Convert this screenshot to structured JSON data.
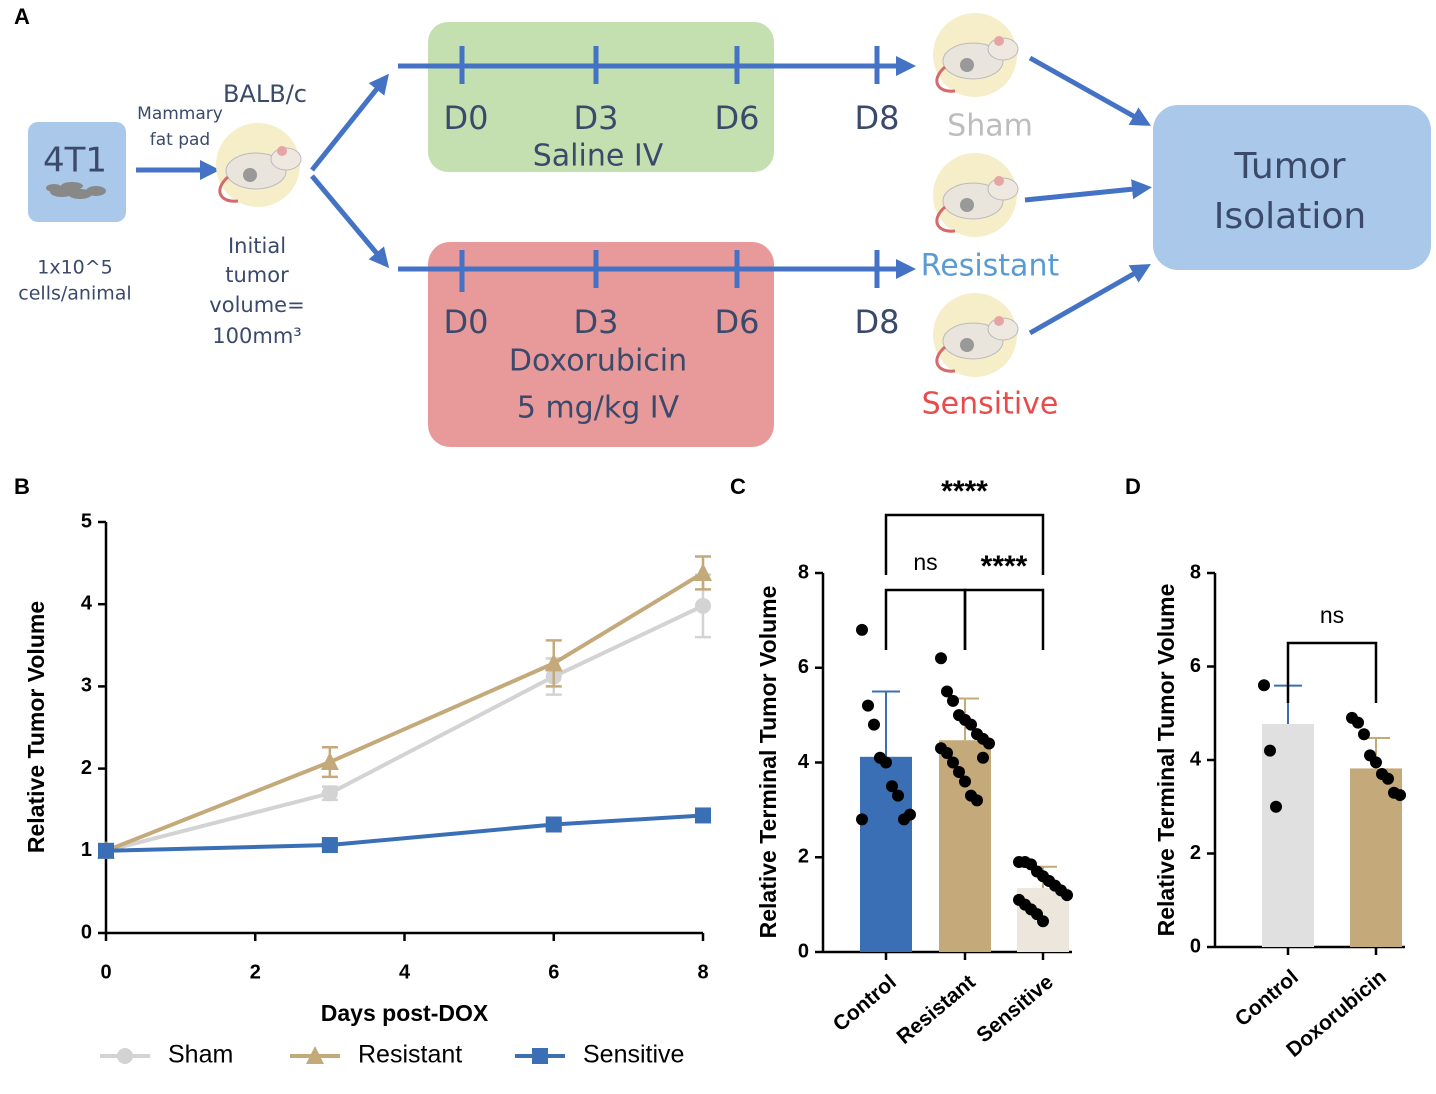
{
  "diagram": {
    "panel": "A",
    "cell_line": "4T1",
    "cell_count": [
      "1x10^5",
      "cells/animal"
    ],
    "route": [
      "Mammary",
      "fat pad"
    ],
    "strain": "BALB/c",
    "initial": [
      "Initial",
      "tumor",
      "volume=",
      "100mm³"
    ],
    "saline_days": [
      "D0",
      "D3",
      "D6",
      "D8"
    ],
    "saline_label": "Saline IV",
    "dox_days": [
      "D0",
      "D3",
      "D6",
      "D8"
    ],
    "dox_label": [
      "Doxorubicin",
      "5 mg/kg IV"
    ],
    "groups": [
      "Sham",
      "Resistant",
      "Sensitive"
    ],
    "endpoint": [
      "Tumor",
      "Isolation"
    ]
  },
  "chart_data": [
    {
      "type": "line",
      "panel": "B",
      "x_label": "Days post-DOX",
      "y_label": "Relative Tumor Volume",
      "x": [
        0,
        3,
        6,
        8
      ],
      "xlim": [
        0,
        8
      ],
      "xticks": [
        0,
        2,
        4,
        6,
        8
      ],
      "ylim": [
        0,
        5
      ],
      "yticks": [
        0,
        1,
        2,
        3,
        4,
        5
      ],
      "grid": false,
      "legend": "bottom",
      "series": [
        {
          "name": "Sham",
          "color": "#d3d3d3",
          "marker": "circle",
          "values": [
            1,
            1.7,
            3.12,
            3.98
          ],
          "errors": [
            0,
            0.08,
            0.22,
            0.38
          ]
        },
        {
          "name": "Resistant",
          "color": "#c4a97a",
          "marker": "triangle",
          "values": [
            1,
            2.08,
            3.28,
            4.38
          ],
          "errors": [
            0,
            0.18,
            0.28,
            0.2
          ]
        },
        {
          "name": "Sensitive",
          "color": "#3a6fb5",
          "marker": "square",
          "values": [
            1,
            1.07,
            1.32,
            1.43
          ],
          "errors": [
            0,
            0.03,
            0.04,
            0.04
          ]
        }
      ]
    },
    {
      "type": "bar",
      "panel": "C",
      "y_label": "Relative Terminal Tumor Volume",
      "categories": [
        "Control",
        "Resistant",
        "Sensitive"
      ],
      "values": [
        4.12,
        4.47,
        1.35
      ],
      "errors": [
        1.38,
        0.88,
        0.45
      ],
      "colors": [
        "#3a6fb5",
        "#c4a97a",
        "#ede6dc"
      ],
      "points": [
        [
          6.8,
          5.2,
          4.8,
          4.1,
          4.0,
          3.5,
          3.3,
          2.8,
          2.9,
          2.8
        ],
        [
          6.2,
          5.5,
          5.3,
          5.0,
          4.9,
          4.8,
          4.6,
          4.5,
          4.4,
          4.3,
          4.2,
          4.0,
          3.8,
          3.6,
          3.3,
          3.2,
          4.1
        ],
        [
          1.9,
          1.9,
          1.85,
          1.7,
          1.6,
          1.5,
          1.4,
          1.3,
          1.2,
          1.1,
          1.0,
          0.9,
          0.8,
          0.65,
          1.5
        ]
      ],
      "ylim": [
        0,
        8
      ],
      "yticks": [
        0,
        2,
        4,
        6,
        8
      ],
      "annotations": [
        "****",
        "ns",
        "****"
      ]
    },
    {
      "type": "bar",
      "panel": "D",
      "y_label": "Relative Terminal Tumor Volume",
      "categories": [
        "Control",
        "Doxorubicin"
      ],
      "values": [
        4.77,
        3.82
      ],
      "errors": [
        0.82,
        0.65
      ],
      "colors": [
        "#e0e0e0",
        "#c4a97a"
      ],
      "points": [
        [
          5.6,
          4.2,
          3.0
        ],
        [
          4.9,
          4.8,
          4.55,
          4.1,
          3.95,
          3.7,
          3.6,
          3.3,
          3.25
        ]
      ],
      "ylim": [
        0,
        8
      ],
      "yticks": [
        0,
        2,
        4,
        6,
        8
      ],
      "annotations": [
        "ns"
      ]
    }
  ]
}
